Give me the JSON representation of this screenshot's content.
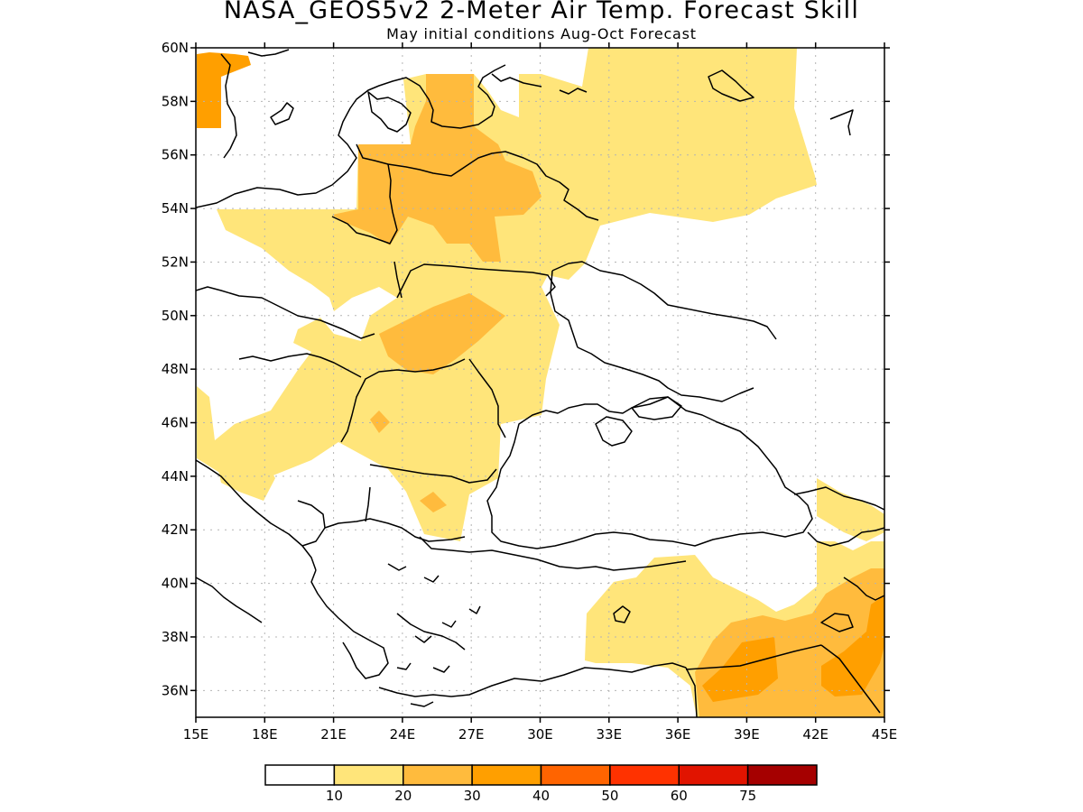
{
  "map": {
    "title": "NASA_GEOS5v2 2-Meter Air Temp. Forecast Skill",
    "subtitle": "May initial conditions  Aug-Oct Forecast",
    "lon_range": [
      15,
      45
    ],
    "lat_range": [
      35,
      60
    ],
    "lon_ticks": [
      "15E",
      "18E",
      "21E",
      "24E",
      "27E",
      "30E",
      "33E",
      "36E",
      "39E",
      "42E",
      "45E"
    ],
    "lat_ticks": [
      "36N",
      "38N",
      "40N",
      "42N",
      "44N",
      "46N",
      "48N",
      "50N",
      "52N",
      "54N",
      "56N",
      "58N",
      "60N"
    ],
    "gridlines": true,
    "colorbar": {
      "labels": [
        "10",
        "20",
        "30",
        "40",
        "50",
        "60",
        "75"
      ],
      "colors": [
        "#ffffff",
        "#ffe57a",
        "#ffbb3d",
        "#ff9f00",
        "#ff6400",
        "#ff3200",
        "#e11400",
        "#a50000"
      ]
    }
  }
}
